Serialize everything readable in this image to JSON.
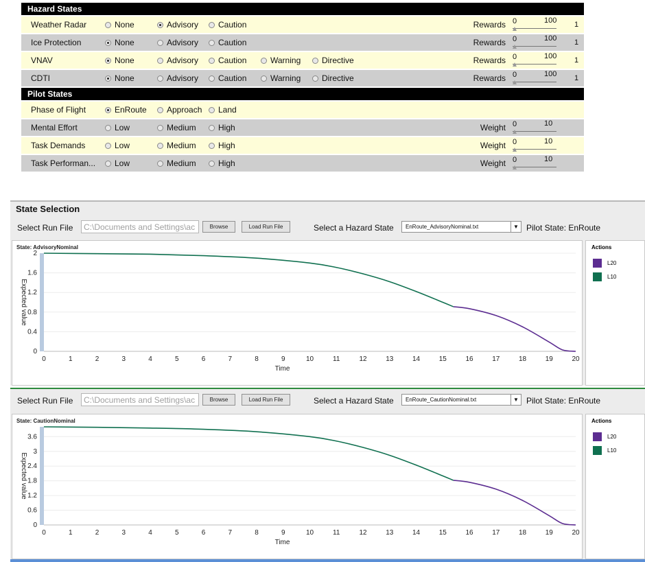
{
  "hazard_states": {
    "header": "Hazard States",
    "rows": [
      {
        "label": "Weather Radar",
        "options": [
          "None",
          "Advisory",
          "Caution"
        ],
        "selected": 1,
        "reward_label": "Rewards",
        "min": "0",
        "max": "100",
        "value": "1",
        "level_fraction": 0.0
      },
      {
        "label": "Ice Protection",
        "options": [
          "None",
          "Advisory",
          "Caution"
        ],
        "selected": 0,
        "reward_label": "Rewards",
        "min": "0",
        "max": "100",
        "value": "1",
        "level_fraction": 0.0
      },
      {
        "label": "VNAV",
        "options": [
          "None",
          "Advisory",
          "Caution",
          "Warning",
          "Directive"
        ],
        "selected": 0,
        "reward_label": "Rewards",
        "min": "0",
        "max": "100",
        "value": "1",
        "level_fraction": 0.0
      },
      {
        "label": "CDTI",
        "options": [
          "None",
          "Advisory",
          "Caution",
          "Warning",
          "Directive"
        ],
        "selected": 0,
        "reward_label": "Rewards",
        "min": "0",
        "max": "100",
        "value": "1",
        "level_fraction": 0.0
      }
    ]
  },
  "pilot_states": {
    "header": "Pilot States",
    "rows": [
      {
        "label": "Phase of Flight",
        "options": [
          "EnRoute",
          "Approach",
          "Land"
        ],
        "selected": 0
      },
      {
        "label": "Mental Effort",
        "options": [
          "Low",
          "Medium",
          "High"
        ],
        "selected": -1,
        "weight_label": "Weight",
        "min": "0",
        "max": "10",
        "level_fraction": 0.0
      },
      {
        "label": "Task Demands",
        "options": [
          "Low",
          "Medium",
          "High"
        ],
        "selected": -1,
        "weight_label": "Weight",
        "min": "0",
        "max": "10",
        "level_fraction": 0.0
      },
      {
        "label": "Task Performan...",
        "options": [
          "Low",
          "Medium",
          "High"
        ],
        "selected": -1,
        "weight_label": "Weight",
        "min": "0",
        "max": "10",
        "level_fraction": 0.0
      }
    ]
  },
  "state_selection": {
    "title": "State Selection",
    "panels": [
      {
        "select_run_label": "Select Run File",
        "file_placeholder": "C:\\Documents and Settings\\ac",
        "browse_label": "Browse",
        "load_label": "Load Run File",
        "hazard_label": "Select a Hazard State",
        "hazard_value": "EnRoute_AdvisoryNominal.txt",
        "pilot_state": "Pilot State: EnRoute",
        "chart_title": "State: AdvisoryNominal",
        "legend_title": "Actions"
      },
      {
        "select_run_label": "Select Run File",
        "file_placeholder": "C:\\Documents and Settings\\ac",
        "browse_label": "Browse",
        "load_label": "Load Run File",
        "hazard_label": "Select a Hazard State",
        "hazard_value": "EnRoute_CautionNominal.txt",
        "pilot_state": "Pilot State: EnRoute",
        "chart_title": "State: CautionNominal",
        "legend_title": "Actions"
      }
    ]
  },
  "colors": {
    "L20": "#5c2d91",
    "L10": "#107050"
  },
  "chart_data": [
    {
      "type": "line",
      "title": "State: AdvisoryNominal",
      "xlabel": "Time",
      "ylabel": "Expected value",
      "xlim": [
        0,
        20
      ],
      "ylim": [
        0,
        2
      ],
      "xticks": [
        "0",
        "1",
        "2",
        "3",
        "4",
        "5",
        "6",
        "7",
        "8",
        "9",
        "10",
        "11",
        "12",
        "13",
        "14",
        "15",
        "16",
        "17",
        "18",
        "19",
        "20"
      ],
      "yticks": [
        "0",
        "0.4",
        "0.8",
        "1.2",
        "1.6",
        "2"
      ],
      "legend": "right",
      "series": [
        {
          "name": "L10",
          "x": [
            0,
            2,
            4,
            6,
            8,
            10,
            11,
            12,
            13,
            14,
            15,
            15.4
          ],
          "values": [
            2.0,
            1.99,
            1.98,
            1.95,
            1.9,
            1.8,
            1.71,
            1.58,
            1.42,
            1.22,
            1.0,
            0.91
          ]
        },
        {
          "name": "L20",
          "x": [
            15.4,
            16,
            17,
            18,
            19,
            19.5,
            20
          ],
          "values": [
            0.91,
            0.87,
            0.73,
            0.5,
            0.19,
            0.03,
            0.0
          ]
        }
      ]
    },
    {
      "type": "line",
      "title": "State: CautionNominal",
      "xlabel": "Time",
      "ylabel": "Expected value",
      "xlim": [
        0,
        20
      ],
      "ylim": [
        0,
        4
      ],
      "xticks": [
        "0",
        "1",
        "2",
        "3",
        "4",
        "5",
        "6",
        "7",
        "8",
        "9",
        "10",
        "11",
        "12",
        "13",
        "14",
        "15",
        "16",
        "17",
        "18",
        "19",
        "20"
      ],
      "yticks": [
        "0",
        "0.6",
        "1.2",
        "1.8",
        "2.4",
        "3",
        "3.6"
      ],
      "legend": "right",
      "series": [
        {
          "name": "L10",
          "x": [
            0,
            2,
            4,
            6,
            8,
            10,
            11,
            12,
            13,
            14,
            15,
            15.4
          ],
          "values": [
            4.0,
            3.98,
            3.95,
            3.9,
            3.8,
            3.6,
            3.42,
            3.16,
            2.84,
            2.44,
            2.0,
            1.82
          ]
        },
        {
          "name": "L20",
          "x": [
            15.4,
            16,
            17,
            18,
            19,
            19.5,
            20
          ],
          "values": [
            1.82,
            1.74,
            1.46,
            1.0,
            0.38,
            0.06,
            0.0
          ]
        }
      ]
    }
  ]
}
